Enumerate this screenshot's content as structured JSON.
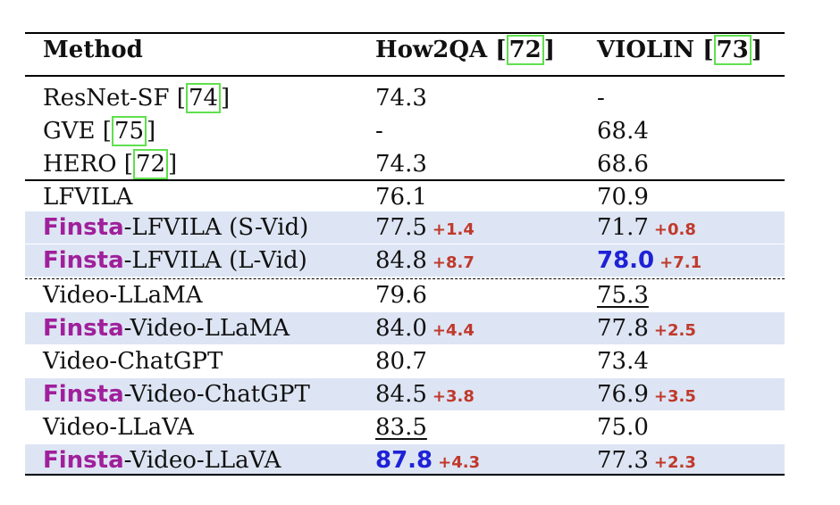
{
  "table": {
    "headers": {
      "method": "Method",
      "how2qa": "How2QA",
      "how2qa_ref": "72",
      "violin": "VIOLIN",
      "violin_ref": "73"
    },
    "rows": [
      {
        "method_prefix": "",
        "method": "ResNet-SF [",
        "ref": "74",
        "method_suffix": "]",
        "how2qa": "74.3",
        "how2qa_delta": "",
        "violin": "-",
        "violin_delta": "",
        "highlight": false
      },
      {
        "method_prefix": "",
        "method": "GVE [",
        "ref": "75",
        "method_suffix": "]",
        "how2qa": "-",
        "how2qa_delta": "",
        "violin": "68.4",
        "violin_delta": "",
        "highlight": false
      },
      {
        "method_prefix": "",
        "method": "HERO [",
        "ref": "72",
        "method_suffix": "]",
        "how2qa": "74.3",
        "how2qa_delta": "",
        "violin": "68.6",
        "violin_delta": "",
        "highlight": false
      },
      {
        "method_prefix": "",
        "method": "LFVILA",
        "how2qa": "76.1",
        "how2qa_delta": "",
        "violin": "70.9",
        "violin_delta": "",
        "highlight": false
      },
      {
        "method_prefix": "Finsta",
        "method": "-LFVILA (S-Vid)",
        "how2qa": "77.5",
        "how2qa_delta": "+1.4",
        "violin": "71.7",
        "violin_delta": "+0.8",
        "highlight": true
      },
      {
        "method_prefix": "Finsta",
        "method": "-LFVILA (L-Vid)",
        "how2qa": "84.8",
        "how2qa_delta": "+8.7",
        "violin": "78.0",
        "violin_delta": "+7.1",
        "highlight": true,
        "violin_best": true
      },
      {
        "method_prefix": "",
        "method": "Video-LLaMA",
        "how2qa": "79.6",
        "how2qa_delta": "",
        "violin": "75.3",
        "violin_delta": "",
        "highlight": false,
        "violin_second": true
      },
      {
        "method_prefix": "Finsta",
        "method": "-Video-LLaMA",
        "how2qa": "84.0",
        "how2qa_delta": "+4.4",
        "violin": "77.8",
        "violin_delta": "+2.5",
        "highlight": true
      },
      {
        "method_prefix": "",
        "method": "Video-ChatGPT",
        "how2qa": "80.7",
        "how2qa_delta": "",
        "violin": "73.4",
        "violin_delta": "",
        "highlight": false
      },
      {
        "method_prefix": "Finsta",
        "method": "-Video-ChatGPT",
        "how2qa": "84.5",
        "how2qa_delta": "+3.8",
        "violin": "76.9",
        "violin_delta": "+3.5",
        "highlight": true
      },
      {
        "method_prefix": "",
        "method": "Video-LLaVA",
        "how2qa": "83.5",
        "how2qa_delta": "",
        "violin": "75.0",
        "violin_delta": "",
        "highlight": false,
        "how2qa_second": true
      },
      {
        "method_prefix": "Finsta",
        "method": "-Video-LLaVA",
        "how2qa": "87.8",
        "how2qa_delta": "+4.3",
        "violin": "77.3",
        "violin_delta": "+2.3",
        "highlight": true,
        "how2qa_best": true
      }
    ]
  }
}
